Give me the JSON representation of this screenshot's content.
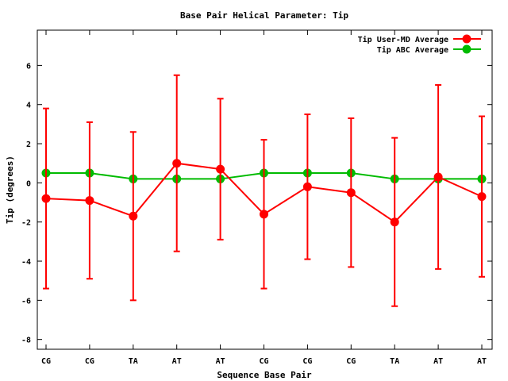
{
  "chart_data": {
    "type": "line",
    "title": "Base Pair Helical Parameter: Tip",
    "xlabel": "Sequence Base Pair",
    "ylabel": "Tip (degrees)",
    "categories": [
      "CG",
      "CG",
      "TA",
      "AT",
      "AT",
      "CG",
      "CG",
      "CG",
      "TA",
      "AT",
      "AT"
    ],
    "ylim": [
      -8.5,
      7.8
    ],
    "yticks": [
      -8,
      -6,
      -4,
      -2,
      0,
      2,
      4,
      6
    ],
    "legend_position": "top-right",
    "grid": false,
    "series": [
      {
        "name": "Tip User-MD Average",
        "color": "#ff0000",
        "values": [
          -0.8,
          -0.9,
          -1.7,
          1.0,
          0.7,
          -1.6,
          -0.2,
          -0.5,
          -2.0,
          0.3,
          -0.7
        ],
        "error": [
          4.6,
          4.0,
          4.3,
          4.5,
          3.6,
          3.8,
          3.7,
          3.8,
          4.3,
          4.7,
          4.1
        ]
      },
      {
        "name": "Tip ABC Average",
        "color": "#00bb00",
        "values": [
          0.5,
          0.5,
          0.2,
          0.2,
          0.2,
          0.5,
          0.5,
          0.5,
          0.2,
          0.2,
          0.2
        ]
      }
    ]
  }
}
